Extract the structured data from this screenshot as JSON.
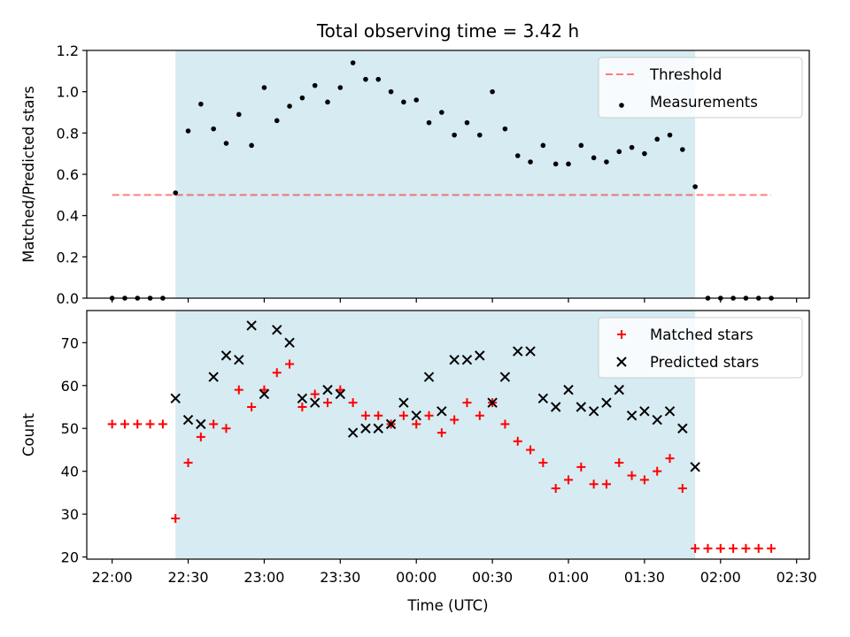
{
  "chart_data": [
    {
      "type": "scatter",
      "title": "Total observing time = 3.42 h",
      "ylabel": "Matched/Predicted stars",
      "xlabel": "",
      "ylim": [
        0,
        1.2
      ],
      "yticks": [
        "0.0",
        "0.2",
        "0.4",
        "0.6",
        "0.8",
        "1.0",
        "1.2"
      ],
      "xlim": [
        "21:50",
        "02:35"
      ],
      "grid": false,
      "legend_placement": "top-right",
      "shaded_region": {
        "start": "22:25",
        "end": "01:50",
        "color": "#add8e6"
      },
      "threshold": {
        "name": "Threshold",
        "value": 0.5,
        "start": "22:00",
        "end": "02:20",
        "color": "#ff0000"
      },
      "series": [
        {
          "name": "Measurements",
          "marker": "dot",
          "color": "#000000",
          "x": [
            "22:00",
            "22:05",
            "22:10",
            "22:15",
            "22:20",
            "22:25",
            "22:30",
            "22:35",
            "22:40",
            "22:45",
            "22:50",
            "22:55",
            "23:00",
            "23:05",
            "23:10",
            "23:15",
            "23:20",
            "23:25",
            "23:30",
            "23:35",
            "23:40",
            "23:45",
            "23:50",
            "23:55",
            "00:00",
            "00:05",
            "00:10",
            "00:15",
            "00:20",
            "00:25",
            "00:30",
            "00:35",
            "00:40",
            "00:45",
            "00:50",
            "00:55",
            "01:00",
            "01:05",
            "01:10",
            "01:15",
            "01:20",
            "01:25",
            "01:30",
            "01:35",
            "01:40",
            "01:45",
            "01:50",
            "01:55",
            "02:00",
            "02:05",
            "02:10",
            "02:15",
            "02:20"
          ],
          "y": [
            0,
            0,
            0,
            0,
            0,
            0.51,
            0.81,
            0.94,
            0.82,
            0.75,
            0.89,
            0.74,
            1.02,
            0.86,
            0.93,
            0.97,
            1.03,
            0.95,
            1.02,
            1.14,
            1.06,
            1.06,
            1.0,
            0.95,
            0.96,
            0.85,
            0.9,
            0.79,
            0.85,
            0.79,
            1.0,
            0.82,
            0.69,
            0.66,
            0.74,
            0.65,
            0.65,
            0.74,
            0.68,
            0.66,
            0.71,
            0.73,
            0.7,
            0.77,
            0.79,
            0.72,
            0.54,
            0,
            0,
            0,
            0,
            0,
            0
          ]
        }
      ]
    },
    {
      "type": "scatter",
      "title": "",
      "ylabel": "Count",
      "xlabel": "Time (UTC)",
      "ylim": [
        19.5,
        77.5
      ],
      "yticks": [
        "20",
        "30",
        "40",
        "50",
        "60",
        "70"
      ],
      "xlim": [
        "21:50",
        "02:35"
      ],
      "xticks": [
        "22:00",
        "22:30",
        "23:00",
        "23:30",
        "00:00",
        "00:30",
        "01:00",
        "01:30",
        "02:00",
        "02:30"
      ],
      "grid": false,
      "legend_placement": "top-right",
      "shaded_region": {
        "start": "22:25",
        "end": "01:50",
        "color": "#add8e6"
      },
      "series": [
        {
          "name": "Matched stars",
          "marker": "plus",
          "color": "#ff0000",
          "x": [
            "22:00",
            "22:05",
            "22:10",
            "22:15",
            "22:20",
            "22:25",
            "22:30",
            "22:35",
            "22:40",
            "22:45",
            "22:50",
            "22:55",
            "23:00",
            "23:05",
            "23:10",
            "23:15",
            "23:20",
            "23:25",
            "23:30",
            "23:35",
            "23:40",
            "23:45",
            "23:50",
            "23:55",
            "00:00",
            "00:05",
            "00:10",
            "00:15",
            "00:20",
            "00:25",
            "00:30",
            "00:35",
            "00:40",
            "00:45",
            "00:50",
            "00:55",
            "01:00",
            "01:05",
            "01:10",
            "01:15",
            "01:20",
            "01:25",
            "01:30",
            "01:35",
            "01:40",
            "01:45",
            "01:50",
            "01:55",
            "02:00",
            "02:05",
            "02:10",
            "02:15",
            "02:20"
          ],
          "y": [
            51,
            51,
            51,
            51,
            51,
            29,
            42,
            48,
            51,
            50,
            59,
            55,
            59,
            63,
            65,
            55,
            58,
            56,
            59,
            56,
            53,
            53,
            51,
            53,
            51,
            53,
            49,
            52,
            56,
            53,
            56,
            51,
            47,
            45,
            42,
            36,
            38,
            41,
            37,
            37,
            42,
            39,
            38,
            40,
            43,
            36,
            22,
            22,
            22,
            22,
            22,
            22,
            22
          ]
        },
        {
          "name": "Predicted stars",
          "marker": "x",
          "color": "#000000",
          "x": [
            "22:25",
            "22:30",
            "22:35",
            "22:40",
            "22:45",
            "22:50",
            "22:55",
            "23:00",
            "23:05",
            "23:10",
            "23:15",
            "23:20",
            "23:25",
            "23:30",
            "23:35",
            "23:40",
            "23:45",
            "23:50",
            "23:55",
            "00:00",
            "00:05",
            "00:10",
            "00:15",
            "00:20",
            "00:25",
            "00:30",
            "00:35",
            "00:40",
            "00:45",
            "00:50",
            "00:55",
            "01:00",
            "01:05",
            "01:10",
            "01:15",
            "01:20",
            "01:25",
            "01:30",
            "01:35",
            "01:40",
            "01:45",
            "01:50"
          ],
          "y": [
            57,
            52,
            51,
            62,
            67,
            66,
            74,
            58,
            73,
            70,
            57,
            56,
            59,
            58,
            49,
            50,
            50,
            51,
            56,
            53,
            62,
            54,
            66,
            66,
            67,
            56,
            62,
            68,
            68,
            57,
            55,
            59,
            55,
            54,
            56,
            59,
            53,
            54,
            52,
            54,
            50,
            41
          ]
        }
      ]
    }
  ]
}
